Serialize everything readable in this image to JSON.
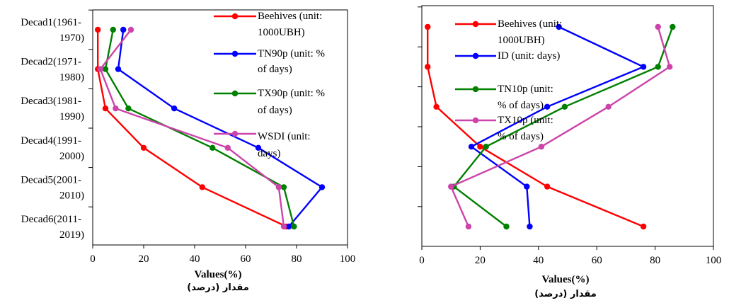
{
  "chart_data": [
    {
      "type": "line",
      "orientation": "horizontal",
      "categories": [
        "Decad1(1961-1970)",
        "Decad2(1971-1980)",
        "Decad3(1981-1990)",
        "Decad4(1991-2000)",
        "Decad5(2001-2010)",
        "Decad6(2011-2019)"
      ],
      "category_lines": [
        [
          "Decad1(1961-",
          "1970)"
        ],
        [
          "Decad2(1971-",
          "1980)"
        ],
        [
          "Decad3(1981-",
          "1990)"
        ],
        [
          "Decad4(1991-",
          "2000)"
        ],
        [
          "Decad5(2001-",
          "2010)"
        ],
        [
          "Decad6(2011-",
          "2019)"
        ]
      ],
      "xlabel": "Values(%)",
      "xlabel_sub": "مقدار (درصد)",
      "xlim": [
        0,
        100
      ],
      "xticks": [
        0,
        20,
        40,
        60,
        80,
        100
      ],
      "grid": false,
      "legend_position": "right-inside",
      "series": [
        {
          "name": "Beehives (unit: 1000UBH)",
          "legend_lines": [
            "Beehives (unit:",
            "1000UBH)"
          ],
          "color": "#ff0000",
          "values": [
            2,
            2,
            5,
            20,
            43,
            76
          ]
        },
        {
          "name": "TN90p (unit: % of days)",
          "legend_lines": [
            "TN90p (unit: %",
            "of days)"
          ],
          "color": "#0000ff",
          "values": [
            12,
            10,
            32,
            65,
            90,
            77
          ]
        },
        {
          "name": "TX90p (unit: % of days)",
          "legend_lines": [
            "TX90p (unit: %",
            "of days)"
          ],
          "color": "#008000",
          "values": [
            8,
            5,
            14,
            47,
            75,
            79
          ]
        },
        {
          "name": "WSDI (unit: days)",
          "legend_lines": [
            "WSDI (unit:",
            "days)"
          ],
          "color": "#cc44aa",
          "values": [
            15,
            3,
            9,
            53,
            73,
            75
          ]
        }
      ]
    },
    {
      "type": "line",
      "orientation": "horizontal",
      "categories": [
        "Decad1(1961-1970)",
        "Decad2(1971-1980)",
        "Decad3(1981-1990)",
        "Decad4(1991-2000)",
        "Decad5(2001-2010)",
        "Decad6(2011-2019)"
      ],
      "xlabel": "Values(%)",
      "xlabel_sub": "مقدار (درصد)",
      "xlim": [
        0,
        100
      ],
      "xticks": [
        0,
        20,
        40,
        60,
        80,
        100
      ],
      "grid": false,
      "legend_position": "top-inside",
      "series": [
        {
          "name": "Beehives (unit: 1000UBH)",
          "legend_lines": [
            "Beehives (unit:",
            "1000UBH)"
          ],
          "color": "#ff0000",
          "values": [
            2,
            2,
            5,
            20,
            43,
            76
          ]
        },
        {
          "name": "ID (unit: days)",
          "legend_lines": [
            "ID (unit: days)"
          ],
          "color": "#0000ff",
          "values": [
            47,
            76,
            43,
            17,
            36,
            37
          ]
        },
        {
          "name": "TN10p (unit: % of days)",
          "legend_lines": [
            "TN10p (unit:",
            "% of days)"
          ],
          "color": "#008000",
          "values": [
            86,
            81,
            49,
            22,
            11,
            29
          ]
        },
        {
          "name": "TX10p (unit: % of days)",
          "legend_lines": [
            "TX10p (unit:",
            "% of days)"
          ],
          "color": "#cc44aa",
          "values": [
            81,
            85,
            64,
            41,
            10,
            16
          ]
        }
      ]
    }
  ]
}
